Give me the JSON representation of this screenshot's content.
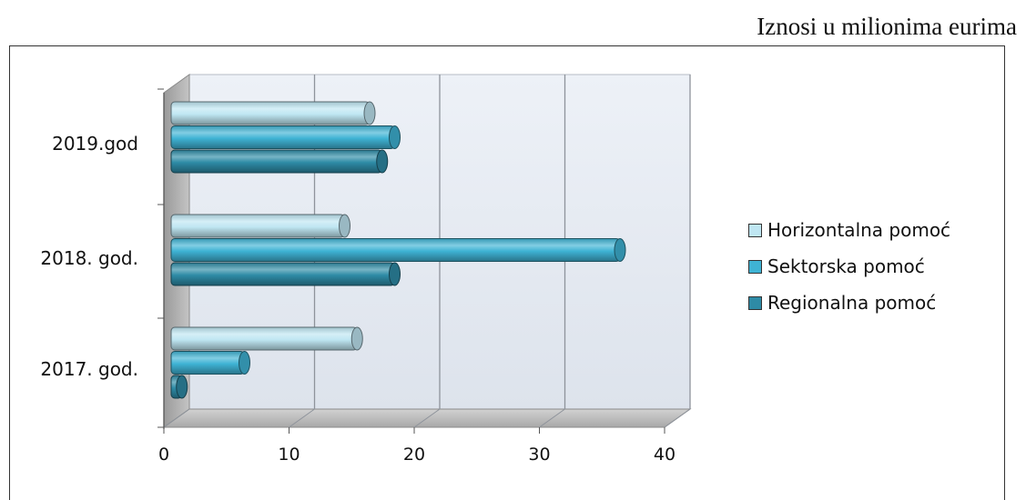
{
  "note": "Iznosi u milionima eurima",
  "chart_data": {
    "type": "bar",
    "orientation": "horizontal",
    "categories": [
      "2019.god",
      "2018. god.",
      "2017. god."
    ],
    "series": [
      {
        "name": "Horizontalna pomoć",
        "values": [
          16,
          14,
          15
        ],
        "color": "#bfe6f2"
      },
      {
        "name": "Sektorska pomoć",
        "values": [
          18,
          36,
          6
        ],
        "color": "#3fb3d4"
      },
      {
        "name": "Regionalna pomoć",
        "values": [
          17,
          18,
          1
        ],
        "color": "#2e8ba6"
      }
    ],
    "xticks": [
      "0",
      "10",
      "20",
      "30",
      "40"
    ],
    "xlim": [
      0,
      40
    ],
    "grid": true,
    "legend_position": "right"
  }
}
